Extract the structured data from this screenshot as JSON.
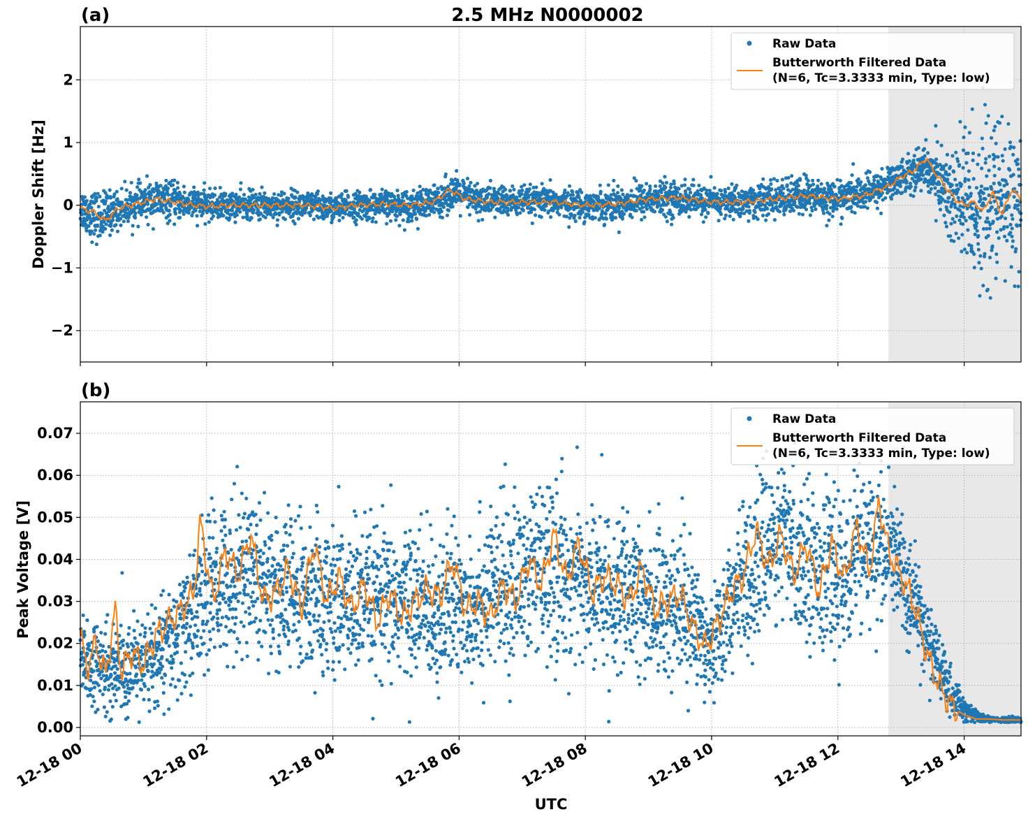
{
  "figure": {
    "title": "2.5 MHz N0000002",
    "xlabel": "UTC"
  },
  "colors": {
    "raw": "#1f77b4",
    "filtered": "#ff7f0e",
    "shade": "#e8e8e8"
  },
  "legend": {
    "raw_label": "Raw Data",
    "filtered_line1": "Butterworth Filtered Data",
    "filtered_line2": "(N=6, Tc=3.3333 min, Type: low)"
  },
  "chart_data": [
    {
      "type": "scatter",
      "panel": "(a)",
      "ylabel": "Doppler Shift [Hz]",
      "xlim_hours": [
        0,
        14.9
      ],
      "ylim": [
        -2.5,
        2.85
      ],
      "yticks": [
        -2,
        -1,
        0,
        1,
        2
      ],
      "ytick_labels": [
        "−2",
        "−1",
        "0",
        "1",
        "2"
      ],
      "xtick_labels": [
        "12-18 00",
        "12-18 02",
        "12-18 04",
        "12-18 06",
        "12-18 08",
        "12-18 10",
        "12-18 12",
        "12-18 14"
      ],
      "grid": true,
      "legend_position": "upper right",
      "shaded_interval_hours": [
        12.8,
        14.9
      ],
      "series": [
        {
          "name": "Raw Data",
          "kind": "points",
          "x_hours": [
            0,
            0.3,
            0.5,
            0.8,
            1.2,
            1.6,
            2.0,
            2.5,
            3.0,
            3.5,
            4.0,
            4.5,
            5.0,
            5.5,
            5.9,
            6.3,
            7.0,
            7.5,
            8.0,
            8.5,
            9.0,
            9.5,
            10.0,
            10.5,
            11.0,
            11.5,
            12.0,
            12.5,
            12.9,
            13.2,
            13.4,
            13.6,
            13.8,
            14.0,
            14.2,
            14.4,
            14.6,
            14.9
          ],
          "center": [
            -0.05,
            -0.2,
            -0.1,
            0.0,
            0.08,
            0.05,
            0.0,
            0.0,
            0.0,
            0.0,
            -0.05,
            0.0,
            0.0,
            0.0,
            0.2,
            0.08,
            0.05,
            0.05,
            0.0,
            0.02,
            0.1,
            0.1,
            0.05,
            0.05,
            0.1,
            0.15,
            0.1,
            0.2,
            0.4,
            0.55,
            0.6,
            0.4,
            0.1,
            0.0,
            0.0,
            0.0,
            0.1,
            0.1
          ],
          "spread": [
            0.35,
            0.45,
            0.35,
            0.3,
            0.35,
            0.3,
            0.25,
            0.25,
            0.25,
            0.25,
            0.25,
            0.25,
            0.25,
            0.3,
            0.3,
            0.3,
            0.25,
            0.25,
            0.25,
            0.3,
            0.3,
            0.3,
            0.25,
            0.3,
            0.3,
            0.35,
            0.3,
            0.3,
            0.3,
            0.35,
            0.4,
            0.6,
            1.0,
            1.4,
            1.4,
            1.4,
            1.4,
            1.3
          ]
        },
        {
          "name": "Butterworth Filtered Data",
          "kind": "line",
          "x_hours": [
            0,
            0.2,
            0.4,
            0.6,
            0.8,
            1.0,
            1.2,
            1.5,
            1.8,
            2.0,
            2.4,
            2.8,
            3.2,
            3.6,
            4.0,
            4.4,
            4.8,
            5.2,
            5.6,
            5.85,
            6.1,
            6.5,
            7.0,
            7.5,
            8.0,
            8.5,
            9.0,
            9.5,
            10.0,
            10.5,
            11.0,
            11.5,
            12.0,
            12.4,
            12.8,
            13.0,
            13.2,
            13.4,
            13.55,
            13.7,
            13.85,
            14.0,
            14.15,
            14.3,
            14.45,
            14.6,
            14.75,
            14.9
          ],
          "y": [
            -0.05,
            -0.1,
            -0.25,
            -0.05,
            0.0,
            0.05,
            0.1,
            0.05,
            0.0,
            -0.02,
            0.0,
            0.0,
            0.0,
            0.0,
            -0.05,
            0.0,
            0.02,
            0.0,
            0.05,
            0.25,
            0.1,
            0.05,
            0.05,
            0.05,
            0.0,
            0.02,
            0.1,
            0.12,
            0.05,
            0.05,
            0.1,
            0.15,
            0.1,
            0.15,
            0.3,
            0.45,
            0.55,
            0.75,
            0.5,
            0.3,
            0.1,
            0.0,
            0.05,
            -0.1,
            0.2,
            -0.15,
            0.25,
            0.1
          ]
        }
      ]
    },
    {
      "type": "scatter",
      "panel": "(b)",
      "ylabel": "Peak Voltage [V]",
      "xlim_hours": [
        0,
        14.9
      ],
      "ylim": [
        -0.002,
        0.0775
      ],
      "yticks": [
        0.0,
        0.01,
        0.02,
        0.03,
        0.04,
        0.05,
        0.06,
        0.07
      ],
      "ytick_labels": [
        "0.00",
        "0.01",
        "0.02",
        "0.03",
        "0.04",
        "0.05",
        "0.06",
        "0.07"
      ],
      "xtick_labels": [
        "12-18 00",
        "12-18 02",
        "12-18 04",
        "12-18 06",
        "12-18 08",
        "12-18 10",
        "12-18 12",
        "12-18 14"
      ],
      "grid": true,
      "legend_position": "upper right",
      "shaded_interval_hours": [
        12.8,
        14.9
      ],
      "series": [
        {
          "name": "Raw Data",
          "kind": "points",
          "x_hours": [
            0,
            0.5,
            1.0,
            1.5,
            1.8,
            2.2,
            2.7,
            3.2,
            3.7,
            4.2,
            4.7,
            5.2,
            5.7,
            6.2,
            6.7,
            7.2,
            7.7,
            8.2,
            8.7,
            9.2,
            9.6,
            10.0,
            10.5,
            11.0,
            11.5,
            12.0,
            12.5,
            12.9,
            13.2,
            13.5,
            13.8,
            14.0,
            14.3,
            14.6,
            14.9
          ],
          "center": [
            0.015,
            0.013,
            0.015,
            0.02,
            0.028,
            0.035,
            0.038,
            0.032,
            0.03,
            0.03,
            0.029,
            0.03,
            0.028,
            0.03,
            0.033,
            0.037,
            0.036,
            0.033,
            0.03,
            0.03,
            0.028,
            0.02,
            0.035,
            0.045,
            0.04,
            0.035,
            0.045,
            0.04,
            0.03,
            0.018,
            0.008,
            0.004,
            0.002,
            0.0018,
            0.0018
          ],
          "spread": [
            0.01,
            0.012,
            0.012,
            0.015,
            0.018,
            0.02,
            0.022,
            0.02,
            0.02,
            0.02,
            0.02,
            0.02,
            0.02,
            0.02,
            0.022,
            0.022,
            0.022,
            0.02,
            0.02,
            0.02,
            0.018,
            0.014,
            0.018,
            0.02,
            0.02,
            0.02,
            0.02,
            0.018,
            0.014,
            0.01,
            0.006,
            0.003,
            0.001,
            0.0007,
            0.0007
          ]
        },
        {
          "name": "Butterworth Filtered Data",
          "kind": "line",
          "x_hours": [
            0,
            0.1,
            0.25,
            0.4,
            0.55,
            0.65,
            0.8,
            1.0,
            1.2,
            1.4,
            1.6,
            1.8,
            1.9,
            2.1,
            2.3,
            2.5,
            2.7,
            2.9,
            3.1,
            3.3,
            3.5,
            3.7,
            3.9,
            4.1,
            4.3,
            4.5,
            4.7,
            4.9,
            5.1,
            5.3,
            5.5,
            5.7,
            5.9,
            6.1,
            6.3,
            6.5,
            6.7,
            6.9,
            7.1,
            7.3,
            7.5,
            7.7,
            7.9,
            8.1,
            8.3,
            8.5,
            8.7,
            8.9,
            9.1,
            9.3,
            9.5,
            9.7,
            9.9,
            10.1,
            10.3,
            10.5,
            10.7,
            10.9,
            11.1,
            11.3,
            11.5,
            11.7,
            11.9,
            12.1,
            12.3,
            12.5,
            12.65,
            12.8,
            13.0,
            13.2,
            13.4,
            13.6,
            13.8,
            14.0,
            14.2,
            14.4,
            14.6,
            14.9
          ],
          "y": [
            0.022,
            0.014,
            0.02,
            0.012,
            0.028,
            0.013,
            0.018,
            0.015,
            0.022,
            0.025,
            0.028,
            0.032,
            0.049,
            0.03,
            0.042,
            0.036,
            0.046,
            0.03,
            0.032,
            0.038,
            0.028,
            0.044,
            0.03,
            0.036,
            0.028,
            0.034,
            0.025,
            0.032,
            0.026,
            0.03,
            0.033,
            0.031,
            0.04,
            0.028,
            0.03,
            0.026,
            0.034,
            0.03,
            0.04,
            0.034,
            0.046,
            0.035,
            0.044,
            0.032,
            0.036,
            0.034,
            0.03,
            0.038,
            0.028,
            0.03,
            0.032,
            0.024,
            0.019,
            0.025,
            0.032,
            0.036,
            0.047,
            0.038,
            0.046,
            0.036,
            0.044,
            0.032,
            0.044,
            0.035,
            0.048,
            0.037,
            0.054,
            0.042,
            0.036,
            0.03,
            0.018,
            0.01,
            0.005,
            0.003,
            0.002,
            0.002,
            0.0018,
            0.0018
          ]
        }
      ]
    }
  ]
}
